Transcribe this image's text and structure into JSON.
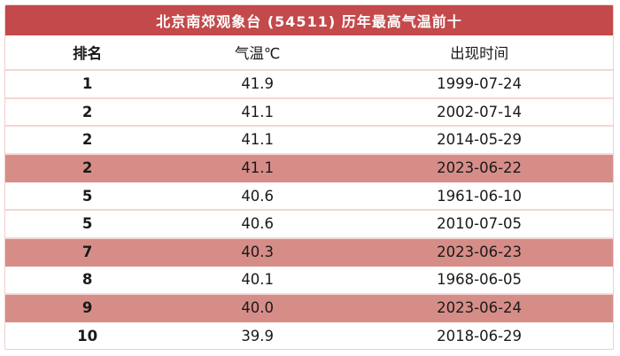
{
  "title": "北京南郊观象台 (54511) 历年最高气温前十",
  "columns": [
    "排名",
    "气温℃",
    "出现时间"
  ],
  "rows": [
    {
      "rank": "1",
      "temp": "41.9",
      "date": "1999-07-24",
      "highlight": false
    },
    {
      "rank": "2",
      "temp": "41.1",
      "date": "2002-07-14",
      "highlight": false
    },
    {
      "rank": "2",
      "temp": "41.1",
      "date": "2014-05-29",
      "highlight": false
    },
    {
      "rank": "2",
      "temp": "41.1",
      "date": "2023-06-22",
      "highlight": true
    },
    {
      "rank": "5",
      "temp": "40.6",
      "date": "1961-06-10",
      "highlight": false
    },
    {
      "rank": "5",
      "temp": "40.6",
      "date": "2010-07-05",
      "highlight": false
    },
    {
      "rank": "7",
      "temp": "40.3",
      "date": "2023-06-23",
      "highlight": true
    },
    {
      "rank": "8",
      "temp": "40.1",
      "date": "1968-06-05",
      "highlight": false
    },
    {
      "rank": "9",
      "temp": "40.0",
      "date": "2023-06-24",
      "highlight": true
    },
    {
      "rank": "10",
      "temp": "39.9",
      "date": "2018-06-29",
      "highlight": false
    }
  ],
  "colors": {
    "title_bg": "#C4494A",
    "title_text": "#FFFFFF",
    "highlight_bg": "#D68D88",
    "divider": "#F2D7D3",
    "border": "#EFCFCB",
    "text": "#1A1A1A"
  },
  "chart_data": {
    "type": "table",
    "title": "北京南郊观象台 (54511) 历年最高气温前十",
    "columns": [
      "排名",
      "气温℃",
      "出现时间"
    ],
    "rows": [
      [
        "1",
        "41.9",
        "1999-07-24"
      ],
      [
        "2",
        "41.1",
        "2002-07-14"
      ],
      [
        "2",
        "41.1",
        "2014-05-29"
      ],
      [
        "2",
        "41.1",
        "2023-06-22"
      ],
      [
        "5",
        "40.6",
        "1961-06-10"
      ],
      [
        "5",
        "40.6",
        "2010-07-05"
      ],
      [
        "7",
        "40.3",
        "2023-06-23"
      ],
      [
        "8",
        "40.1",
        "1968-06-05"
      ],
      [
        "9",
        "40.0",
        "2023-06-24"
      ],
      [
        "10",
        "39.9",
        "2018-06-29"
      ]
    ],
    "highlighted_row_indices": [
      3,
      6,
      8
    ]
  }
}
